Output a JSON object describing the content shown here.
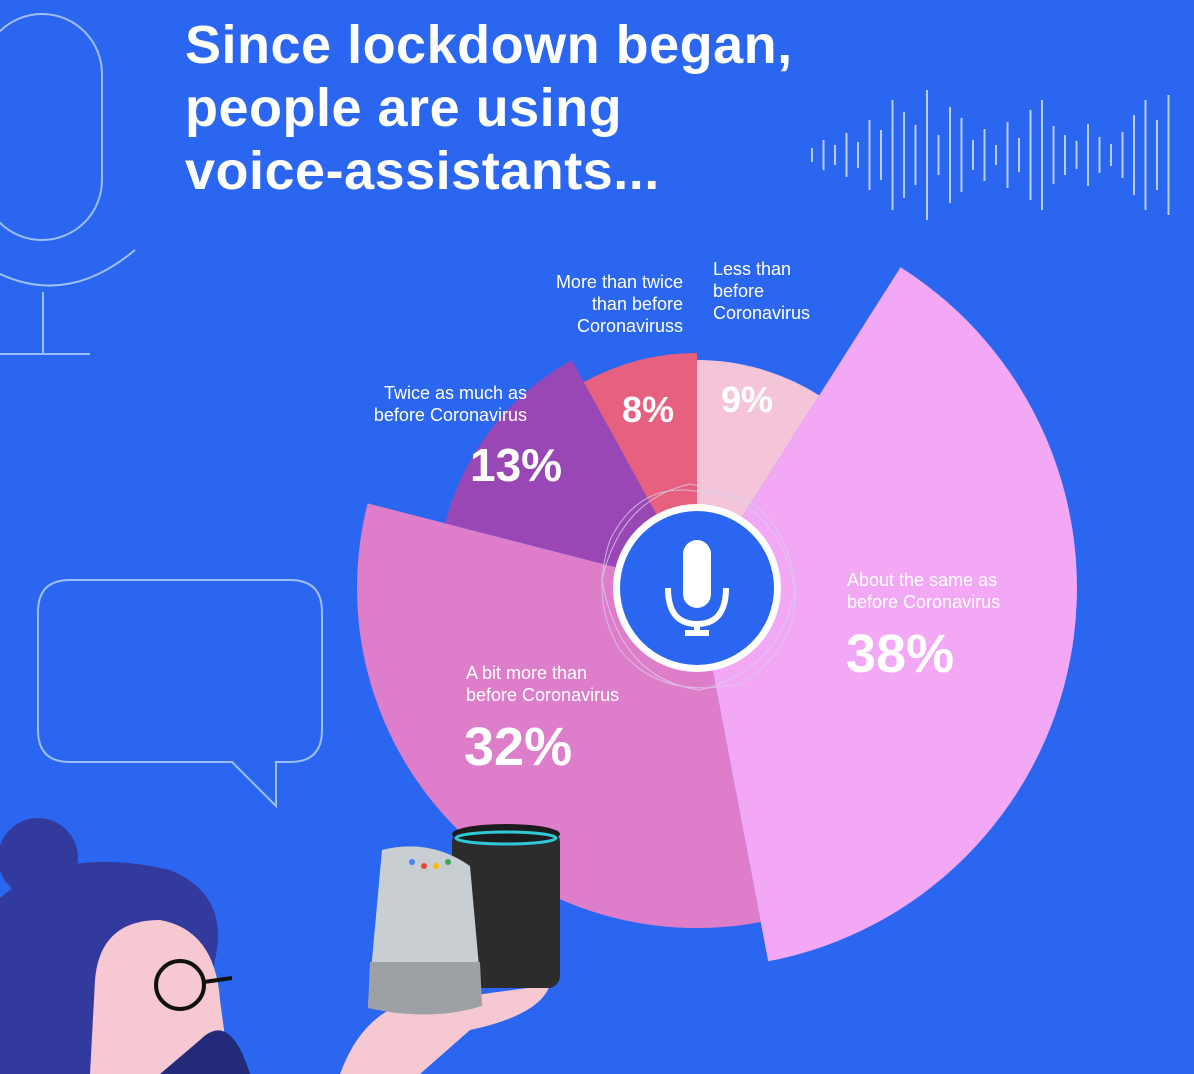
{
  "header": {
    "title_lines": [
      "Since lockdown began,",
      "people are using",
      "voice-assistants..."
    ]
  },
  "colors": {
    "background": "#2b66f0",
    "less_than_before": "#f4c4d8",
    "about_same": "#f2a8f4",
    "bit_more": "#de7ecb",
    "twice": "#9a47b6",
    "more_than_twice": "#e8607f",
    "icon_circle": "#2b66f0"
  },
  "icons": [
    "microphone-icon",
    "speech-bubble-icon",
    "sound-wave-icon",
    "smart-speaker-icon",
    "person-illustration"
  ],
  "chart_data": {
    "type": "pie",
    "categories": [
      "Less than before Coronavirus",
      "About the same as before Coronavirus",
      "A bit more than before Coronavirus",
      "Twice as much as before Coronavirus",
      "More than twice than before Coronaviruss"
    ],
    "values": [
      9,
      38,
      32,
      13,
      8
    ],
    "value_labels": [
      "9%",
      "38%",
      "32%",
      "13%",
      "8%"
    ],
    "label_lines": [
      [
        "Less than",
        "before",
        "Coronavirus"
      ],
      [
        "About the same as",
        "before Coronavirus"
      ],
      [
        "A bit more than",
        "before Coronavirus"
      ],
      [
        "Twice as much as",
        "before Coronavirus"
      ],
      [
        "More than twice",
        "than before",
        "Coronaviruss"
      ]
    ]
  }
}
